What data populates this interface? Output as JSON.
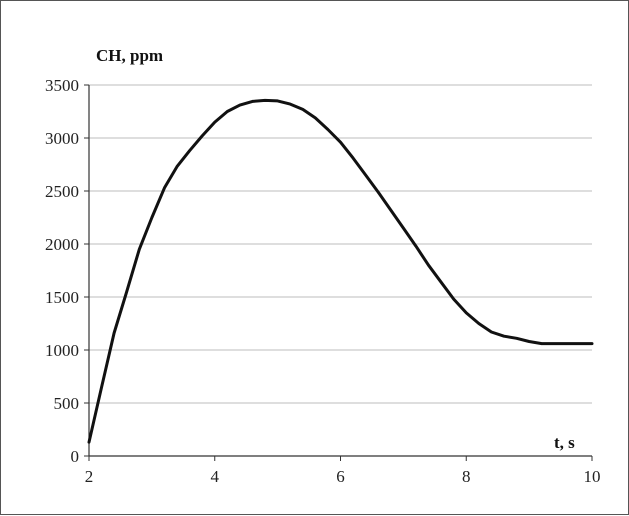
{
  "chart_data": {
    "type": "line",
    "title": "",
    "ylabel": "CH, ppm",
    "xlabel_main": "t, s",
    "xlim": [
      2,
      10
    ],
    "ylim": [
      0,
      3500
    ],
    "x_ticks": [
      2,
      4,
      6,
      8,
      10
    ],
    "y_ticks": [
      0,
      500,
      1000,
      1500,
      2000,
      2500,
      3000,
      3500
    ],
    "x_tick_labels": [
      "2",
      "4",
      "6",
      "8",
      "10"
    ],
    "y_tick_labels": [
      "0",
      "500",
      "1000",
      "1500",
      "2000",
      "2500",
      "3000",
      "3500"
    ],
    "grid": "horizontal",
    "series": [
      {
        "color": "#111111",
        "x": [
          2.0,
          2.2,
          2.4,
          2.6,
          2.8,
          3.0,
          3.2,
          3.4,
          3.6,
          3.8,
          4.0,
          4.2,
          4.4,
          4.6,
          4.8,
          5.0,
          5.2,
          5.4,
          5.6,
          5.8,
          6.0,
          6.2,
          6.4,
          6.6,
          6.8,
          7.0,
          7.2,
          7.4,
          7.6,
          7.8,
          8.0,
          8.2,
          8.4,
          8.6,
          8.8,
          9.0,
          9.2,
          9.4,
          9.6,
          9.8,
          10.0
        ],
        "y": [
          130,
          650,
          1160,
          1550,
          1950,
          2250,
          2530,
          2730,
          2880,
          3020,
          3150,
          3250,
          3310,
          3345,
          3355,
          3350,
          3320,
          3270,
          3190,
          3080,
          2960,
          2810,
          2650,
          2490,
          2320,
          2150,
          1980,
          1800,
          1640,
          1480,
          1350,
          1250,
          1170,
          1130,
          1110,
          1080,
          1060,
          1060,
          1060,
          1060,
          1060
        ]
      }
    ]
  }
}
